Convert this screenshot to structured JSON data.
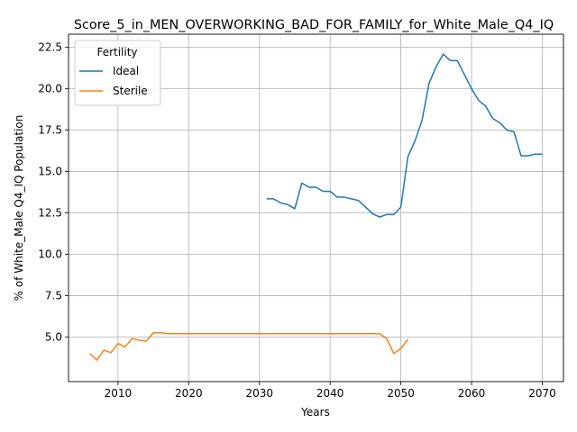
{
  "chart_data": {
    "type": "line",
    "title": "Score_5_in_MEN_OVERWORKING_BAD_FOR_FAMILY_for_White_Male_Q4_IQ",
    "xlabel": "Years",
    "ylabel": "% of White_Male Q4_IQ Population",
    "xlim": [
      2003,
      2073
    ],
    "ylim": [
      2.3,
      23.3
    ],
    "x_ticks": [
      2010,
      2020,
      2030,
      2040,
      2050,
      2060,
      2070
    ],
    "y_ticks": [
      5.0,
      7.5,
      10.0,
      12.5,
      15.0,
      17.5,
      20.0,
      22.5
    ],
    "grid": true,
    "legend": {
      "title": "Fertility",
      "placement": "top-left"
    },
    "series": [
      {
        "name": "Ideal",
        "color": "#1f77b4",
        "x": [
          2031,
          2032,
          2033,
          2034,
          2035,
          2036,
          2037,
          2038,
          2039,
          2040,
          2041,
          2042,
          2043,
          2044,
          2045,
          2046,
          2047,
          2048,
          2049,
          2050,
          2051,
          2052,
          2053,
          2054,
          2055,
          2056,
          2057,
          2058,
          2059,
          2060,
          2061,
          2062,
          2063,
          2064,
          2065,
          2066,
          2067,
          2068,
          2069,
          2070
        ],
        "values": [
          13.35,
          13.35,
          13.1,
          13.0,
          12.75,
          14.3,
          14.05,
          14.05,
          13.8,
          13.8,
          13.45,
          13.45,
          13.35,
          13.25,
          12.85,
          12.45,
          12.25,
          12.4,
          12.4,
          12.85,
          15.9,
          16.85,
          18.1,
          20.35,
          21.35,
          22.1,
          21.7,
          21.7,
          20.85,
          20.0,
          19.3,
          18.95,
          18.2,
          17.95,
          17.5,
          17.4,
          15.95,
          15.95,
          16.05,
          16.05
        ]
      },
      {
        "name": "Sterile",
        "color": "#ff7f0e",
        "x": [
          2006,
          2007,
          2008,
          2009,
          2010,
          2011,
          2012,
          2013,
          2014,
          2015,
          2016,
          2017,
          2018,
          2019,
          2020,
          2021,
          2022,
          2023,
          2024,
          2025,
          2026,
          2027,
          2028,
          2029,
          2030,
          2031,
          2032,
          2033,
          2034,
          2035,
          2036,
          2037,
          2038,
          2039,
          2040,
          2041,
          2042,
          2043,
          2044,
          2045,
          2046,
          2047,
          2048,
          2049,
          2050,
          2051
        ],
        "values": [
          4.0,
          3.6,
          4.2,
          4.05,
          4.6,
          4.4,
          4.9,
          4.8,
          4.75,
          5.25,
          5.25,
          5.2,
          5.2,
          5.2,
          5.2,
          5.2,
          5.2,
          5.2,
          5.2,
          5.2,
          5.2,
          5.2,
          5.2,
          5.2,
          5.2,
          5.2,
          5.2,
          5.2,
          5.2,
          5.2,
          5.2,
          5.2,
          5.2,
          5.2,
          5.2,
          5.2,
          5.2,
          5.2,
          5.2,
          5.2,
          5.2,
          5.2,
          4.9,
          4.0,
          4.3,
          4.85
        ]
      }
    ]
  }
}
